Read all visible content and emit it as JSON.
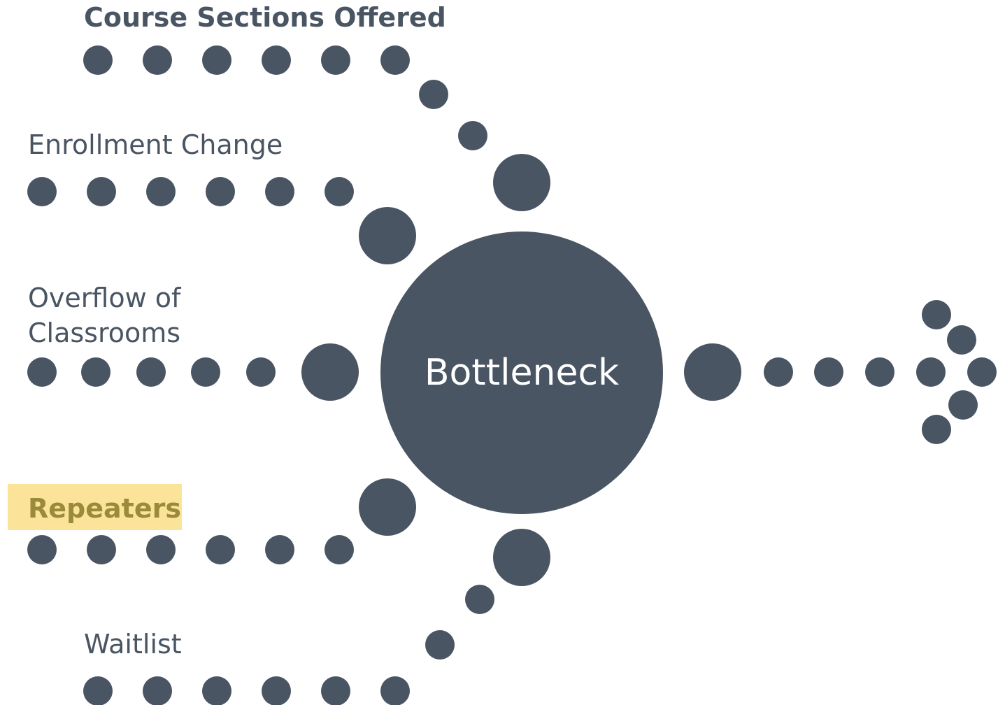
{
  "inputs": [
    {
      "label": "Course Sections Offered"
    },
    {
      "label": "Enrollment Change"
    },
    {
      "label_lines": [
        "Overflow of",
        "Classrooms"
      ]
    },
    {
      "label": "Repeaters"
    },
    {
      "label": "Waitlist"
    }
  ],
  "center": {
    "label": "Bottleneck"
  }
}
